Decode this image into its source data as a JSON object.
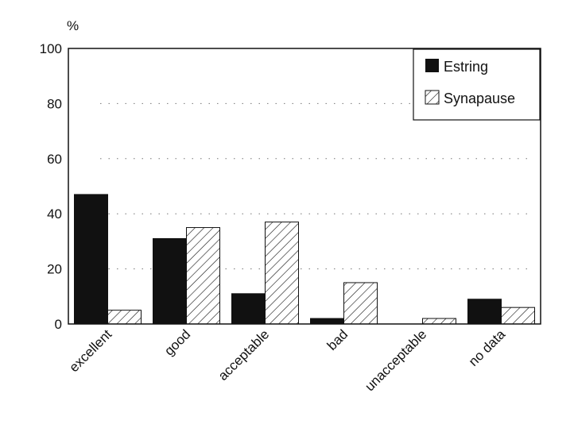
{
  "chart_data": {
    "type": "bar",
    "title": "",
    "xlabel": "",
    "ylabel": "%",
    "ylim": [
      0,
      100
    ],
    "yticks": [
      "0",
      "20",
      "40",
      "60",
      "80",
      "100"
    ],
    "grid": true,
    "legend_position": "top-right",
    "categories": [
      "excellent",
      "good",
      "acceptable",
      "bad",
      "unacceptable",
      "no data"
    ],
    "series": [
      {
        "name": "Estring",
        "fill": "solid",
        "color": "#111111",
        "values": [
          47,
          31,
          11,
          2,
          0,
          9
        ]
      },
      {
        "name": "Synapause",
        "fill": "hatched",
        "color": "#ffffff",
        "values": [
          5,
          35,
          37,
          15,
          2,
          6
        ]
      }
    ]
  }
}
